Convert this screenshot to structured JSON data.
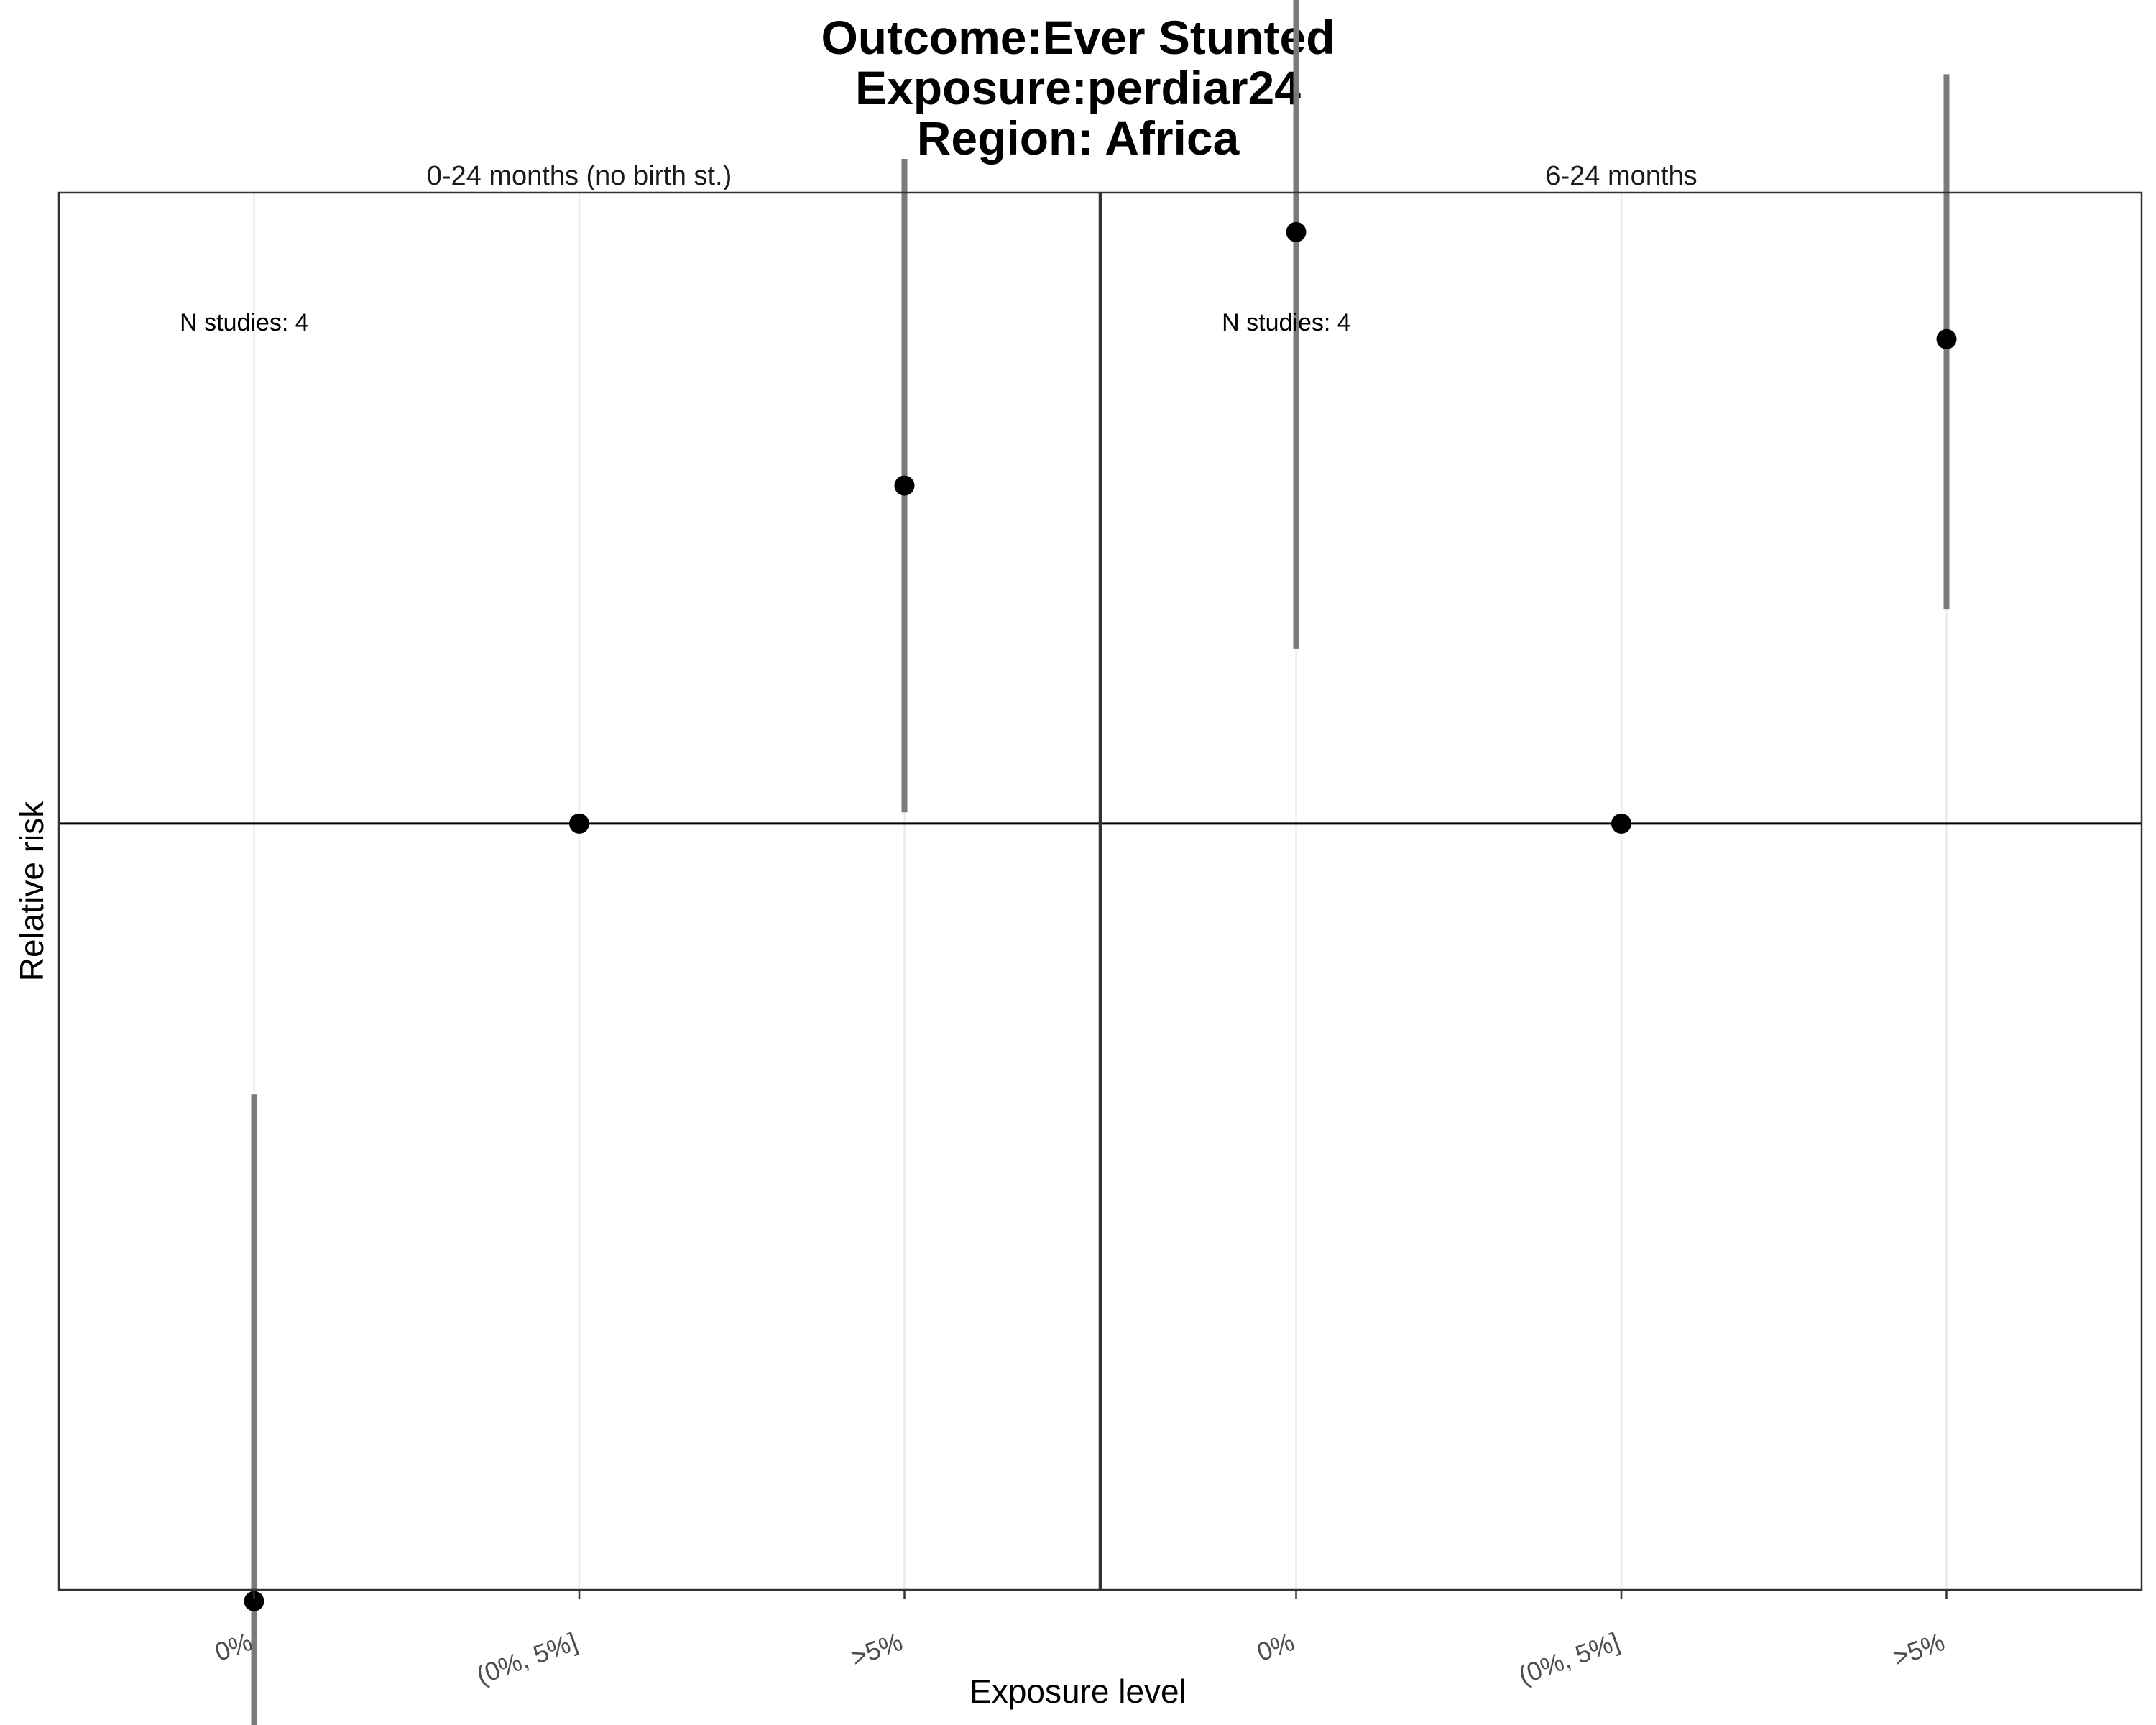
{
  "title_lines": [
    "Outcome:Ever Stunted",
    "Exposure:perdiar24",
    "Region: Africa"
  ],
  "chart_data": {
    "type": "scatter",
    "subtype": "pointrange",
    "xlabel": "Exposure level",
    "ylabel": "Relative risk",
    "y_reference_line": 1,
    "ylim": [
      0.864,
      1.112
    ],
    "y_tick_labels_visible": false,
    "categories": [
      "0%",
      "(0%, 5%]",
      ">5%"
    ],
    "grid": "vertical major lines only",
    "point_color": "#000000",
    "interval_color": "#7a7a7a",
    "panels": [
      {
        "strip": "0-24 months (no birth st.)",
        "annotation": "N studies: 4",
        "points": [
          {
            "category": "0%",
            "estimate": 0.862,
            "lower": 0.772,
            "upper": 0.952
          },
          {
            "category": "(0%, 5%]",
            "estimate": 1.0,
            "lower": 1.0,
            "upper": 1.0
          },
          {
            "category": ">5%",
            "estimate": 1.06,
            "lower": 1.002,
            "upper": 1.118
          }
        ]
      },
      {
        "strip": "6-24 months",
        "annotation": "N studies: 4",
        "points": [
          {
            "category": "0%",
            "estimate": 1.105,
            "lower": 1.031,
            "upper": 1.178
          },
          {
            "category": "(0%, 5%]",
            "estimate": 1.0,
            "lower": 1.0,
            "upper": 1.0
          },
          {
            "category": ">5%",
            "estimate": 1.086,
            "lower": 1.038,
            "upper": 1.133
          }
        ]
      }
    ]
  }
}
